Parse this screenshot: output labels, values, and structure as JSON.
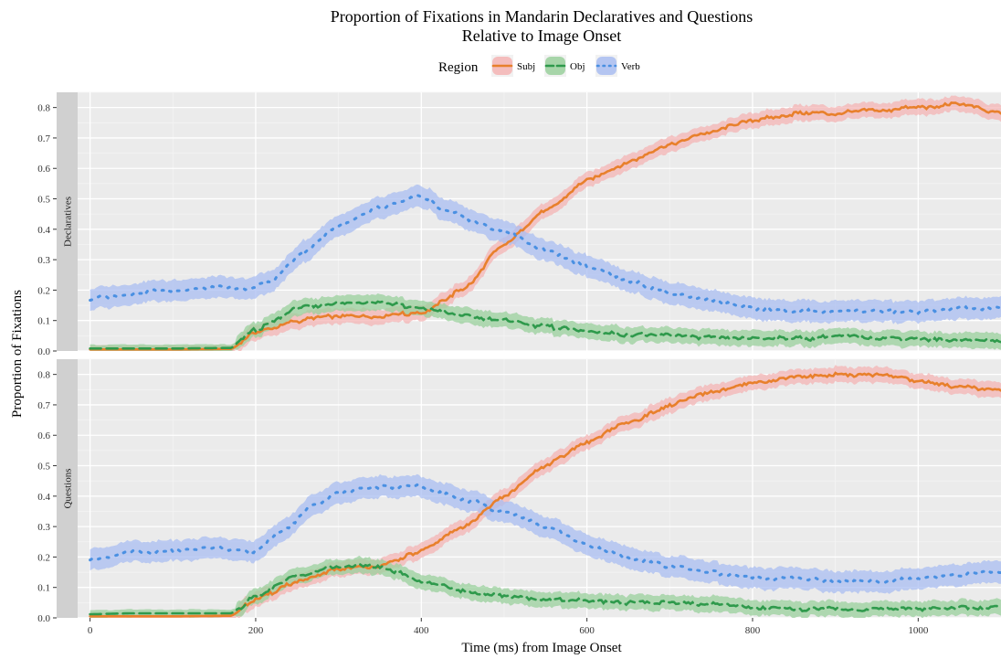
{
  "chart_data": {
    "type": "line",
    "title": "Proportion of Fixations in Mandarin Declaratives and Questions",
    "subtitle": "Relative to Image Onset",
    "xlabel": "Time (ms) from Image Onset",
    "ylabel": "Proportion of Fixations",
    "xlim": [
      -15,
      1100
    ],
    "ylim": [
      0,
      0.85
    ],
    "x_ticks": [
      0,
      200,
      400,
      600,
      800,
      1000
    ],
    "y_ticks": [
      0.0,
      0.1,
      0.2,
      0.3,
      0.4,
      0.5,
      0.6,
      0.7,
      0.8
    ],
    "grid": true,
    "legend": {
      "title": "Region",
      "position": "top",
      "entries": [
        {
          "name": "Subj",
          "line": "#e8802c",
          "band": "#f4b4b4",
          "style": "solid"
        },
        {
          "name": "Obj",
          "line": "#2f9a4c",
          "band": "#9ad09c",
          "style": "dashed"
        },
        {
          "name": "Verb",
          "line": "#4a90e2",
          "band": "#a9bdf1",
          "style": "dotted"
        }
      ]
    },
    "panels": [
      {
        "label": "Declaratives",
        "series": [
          {
            "name": "Subj",
            "band_halfwidth": 0.025,
            "points": [
              [
                0,
                0.005
              ],
              [
                100,
                0.005
              ],
              [
                170,
                0.007
              ],
              [
                200,
                0.06
              ],
              [
                250,
                0.1
              ],
              [
                300,
                0.115
              ],
              [
                350,
                0.115
              ],
              [
                400,
                0.125
              ],
              [
                450,
                0.2
              ],
              [
                500,
                0.35
              ],
              [
                550,
                0.46
              ],
              [
                600,
                0.56
              ],
              [
                650,
                0.62
              ],
              [
                700,
                0.68
              ],
              [
                750,
                0.72
              ],
              [
                800,
                0.76
              ],
              [
                850,
                0.78
              ],
              [
                900,
                0.78
              ],
              [
                950,
                0.79
              ],
              [
                1000,
                0.8
              ],
              [
                1050,
                0.81
              ],
              [
                1100,
                0.78
              ]
            ]
          },
          {
            "name": "Obj",
            "band_halfwidth": 0.025,
            "points": [
              [
                0,
                0.008
              ],
              [
                100,
                0.008
              ],
              [
                170,
                0.01
              ],
              [
                200,
                0.07
              ],
              [
                250,
                0.14
              ],
              [
                300,
                0.16
              ],
              [
                350,
                0.16
              ],
              [
                400,
                0.14
              ],
              [
                450,
                0.12
              ],
              [
                500,
                0.1
              ],
              [
                550,
                0.08
              ],
              [
                600,
                0.065
              ],
              [
                650,
                0.055
              ],
              [
                700,
                0.05
              ],
              [
                750,
                0.045
              ],
              [
                800,
                0.045
              ],
              [
                850,
                0.04
              ],
              [
                900,
                0.045
              ],
              [
                950,
                0.045
              ],
              [
                1000,
                0.04
              ],
              [
                1050,
                0.035
              ],
              [
                1100,
                0.035
              ]
            ]
          },
          {
            "name": "Verb",
            "band_halfwidth": 0.035,
            "points": [
              [
                0,
                0.17
              ],
              [
                50,
                0.19
              ],
              [
                100,
                0.2
              ],
              [
                150,
                0.21
              ],
              [
                190,
                0.2
              ],
              [
                220,
                0.23
              ],
              [
                260,
                0.33
              ],
              [
                300,
                0.41
              ],
              [
                350,
                0.47
              ],
              [
                400,
                0.51
              ],
              [
                430,
                0.46
              ],
              [
                500,
                0.39
              ],
              [
                550,
                0.33
              ],
              [
                600,
                0.28
              ],
              [
                650,
                0.23
              ],
              [
                700,
                0.19
              ],
              [
                750,
                0.17
              ],
              [
                800,
                0.14
              ],
              [
                850,
                0.13
              ],
              [
                900,
                0.13
              ],
              [
                950,
                0.13
              ],
              [
                1000,
                0.13
              ],
              [
                1050,
                0.14
              ],
              [
                1100,
                0.14
              ]
            ]
          }
        ]
      },
      {
        "label": "Questions",
        "series": [
          {
            "name": "Subj",
            "band_halfwidth": 0.025,
            "points": [
              [
                0,
                0.005
              ],
              [
                100,
                0.005
              ],
              [
                170,
                0.007
              ],
              [
                200,
                0.06
              ],
              [
                250,
                0.12
              ],
              [
                300,
                0.16
              ],
              [
                350,
                0.17
              ],
              [
                400,
                0.22
              ],
              [
                450,
                0.3
              ],
              [
                500,
                0.4
              ],
              [
                550,
                0.5
              ],
              [
                600,
                0.58
              ],
              [
                650,
                0.64
              ],
              [
                700,
                0.7
              ],
              [
                750,
                0.74
              ],
              [
                800,
                0.77
              ],
              [
                850,
                0.79
              ],
              [
                900,
                0.8
              ],
              [
                950,
                0.8
              ],
              [
                1000,
                0.78
              ],
              [
                1050,
                0.76
              ],
              [
                1100,
                0.75
              ]
            ]
          },
          {
            "name": "Obj",
            "band_halfwidth": 0.025,
            "points": [
              [
                0,
                0.012
              ],
              [
                50,
                0.015
              ],
              [
                100,
                0.015
              ],
              [
                170,
                0.015
              ],
              [
                200,
                0.07
              ],
              [
                250,
                0.14
              ],
              [
                300,
                0.17
              ],
              [
                350,
                0.17
              ],
              [
                400,
                0.12
              ],
              [
                450,
                0.09
              ],
              [
                500,
                0.07
              ],
              [
                550,
                0.06
              ],
              [
                600,
                0.055
              ],
              [
                650,
                0.05
              ],
              [
                700,
                0.05
              ],
              [
                750,
                0.045
              ],
              [
                800,
                0.035
              ],
              [
                850,
                0.03
              ],
              [
                900,
                0.03
              ],
              [
                950,
                0.03
              ],
              [
                1000,
                0.03
              ],
              [
                1050,
                0.035
              ],
              [
                1100,
                0.035
              ]
            ]
          },
          {
            "name": "Verb",
            "band_halfwidth": 0.035,
            "points": [
              [
                0,
                0.19
              ],
              [
                50,
                0.22
              ],
              [
                100,
                0.22
              ],
              [
                150,
                0.23
              ],
              [
                200,
                0.22
              ],
              [
                230,
                0.28
              ],
              [
                270,
                0.37
              ],
              [
                300,
                0.41
              ],
              [
                350,
                0.43
              ],
              [
                400,
                0.43
              ],
              [
                450,
                0.39
              ],
              [
                500,
                0.35
              ],
              [
                550,
                0.3
              ],
              [
                600,
                0.24
              ],
              [
                650,
                0.2
              ],
              [
                700,
                0.17
              ],
              [
                750,
                0.15
              ],
              [
                800,
                0.13
              ],
              [
                850,
                0.13
              ],
              [
                900,
                0.12
              ],
              [
                950,
                0.12
              ],
              [
                1000,
                0.13
              ],
              [
                1050,
                0.14
              ],
              [
                1100,
                0.15
              ]
            ]
          }
        ]
      }
    ]
  }
}
